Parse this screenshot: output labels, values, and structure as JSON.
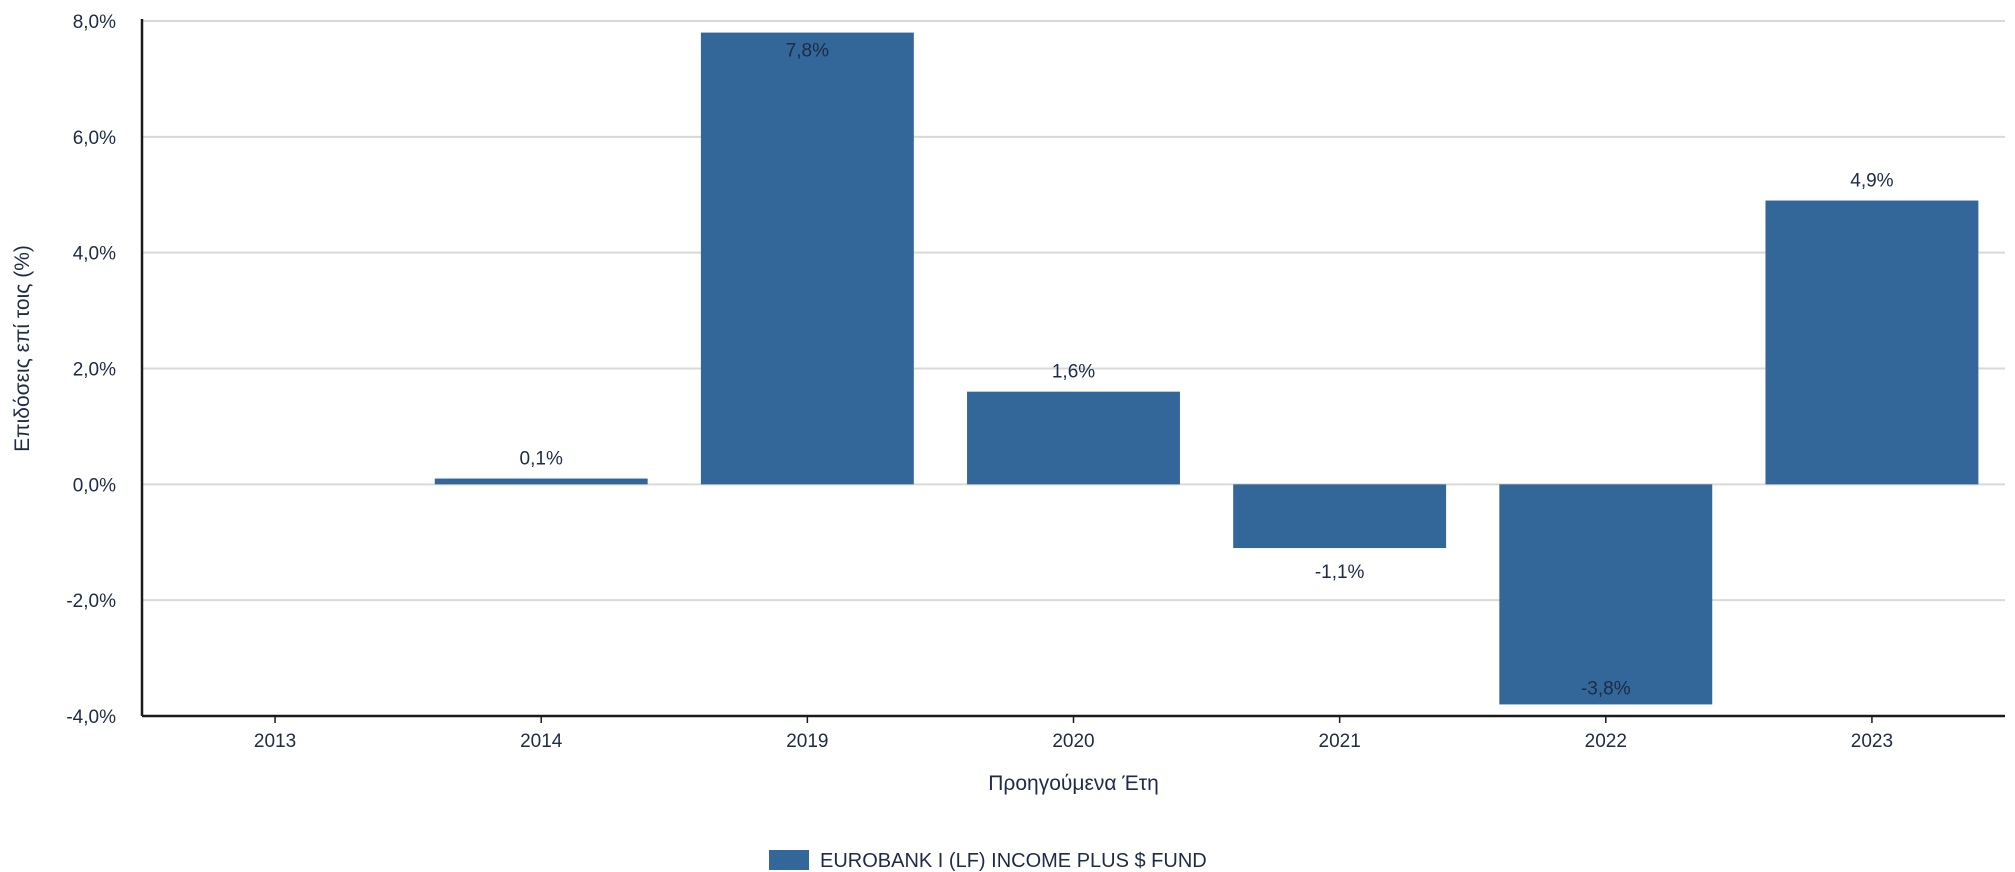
{
  "chart_data": {
    "type": "bar",
    "title": "",
    "xlabel": "Προηγούμενα Έτη",
    "ylabel": "Επιδόσεις επί τοις (%)",
    "categories": [
      "2013",
      "2014",
      "2019",
      "2020",
      "2021",
      "2022",
      "2023"
    ],
    "series": [
      {
        "name": "EUROBANK I (LF) INCOME PLUS $ FUND",
        "values": [
          null,
          0.1,
          7.8,
          1.6,
          -1.1,
          -3.8,
          4.9
        ],
        "labels": [
          "",
          "0,1%",
          "7,8%",
          "1,6%",
          "-1,1%",
          "-3,8%",
          "4,9%"
        ]
      }
    ],
    "ylim": [
      -4,
      8
    ],
    "yticks": [
      8,
      6,
      4,
      2,
      0,
      -2,
      -4
    ],
    "ytick_labels": [
      "8,0%",
      "6,0%",
      "4,0%",
      "2,0%",
      "0,0%",
      "-2,0%",
      "-4,0%"
    ],
    "grid": true,
    "legend": "bottom-center",
    "colors": {
      "bar": "#336699",
      "grid": "#d9d9d9",
      "axis": "#1a1a1a",
      "text": "#1d2b45"
    }
  }
}
